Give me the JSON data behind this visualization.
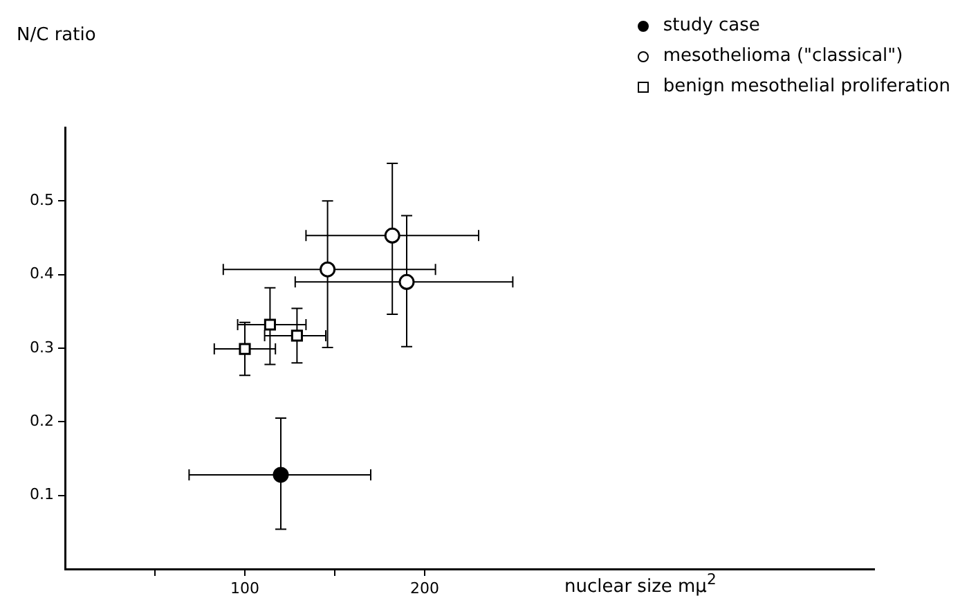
{
  "chart_data": {
    "type": "scatter",
    "xlabel": "nuclear size mμ$^{2}$",
    "ylabel": "N/C ratio",
    "xlim": [
      0,
      450
    ],
    "xticks": [
      {
        "value": 50,
        "label": null
      },
      100,
      {
        "value": 150,
        "label": null
      },
      200
    ],
    "ylim": [
      0,
      0.6
    ],
    "yticks": [
      0.1,
      0.2,
      0.3,
      0.4,
      0.5
    ],
    "grid": false,
    "legend": "top right",
    "series": [
      {
        "name": "study case",
        "color": "#000000",
        "marker": "circle",
        "x": [
          120
        ],
        "values": [
          0.128
        ],
        "errors": [
          [
            0.054,
            0.205
          ]
        ],
        "xerrors": [
          [
            69,
            170
          ]
        ]
      },
      {
        "name": "mesothelioma (\"classical\")",
        "color": "#ffffff",
        "marker": "circle",
        "x": [
          146,
          182,
          190
        ],
        "values": [
          0.407,
          0.453,
          0.39
        ],
        "errors": [
          [
            0.301,
            0.5
          ],
          [
            0.346,
            0.551
          ],
          [
            0.302,
            0.48
          ]
        ],
        "xerrors": [
          [
            88,
            206
          ],
          [
            134,
            230
          ],
          [
            128,
            249
          ]
        ]
      },
      {
        "name": "benign mesothelial proliferation",
        "color": "#ffffff",
        "marker": "square",
        "x": [
          100,
          114,
          129
        ],
        "values": [
          0.299,
          0.332,
          0.317
        ],
        "errors": [
          [
            0.263,
            0.335
          ],
          [
            0.278,
            0.382
          ],
          [
            0.28,
            0.354
          ]
        ],
        "xerrors": [
          [
            83,
            117
          ],
          [
            96,
            134
          ],
          [
            111,
            145
          ]
        ]
      }
    ]
  }
}
